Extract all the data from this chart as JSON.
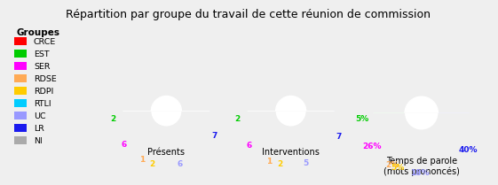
{
  "title": "Répartition par groupe du travail de cette réunion de commission",
  "groups": [
    "CRCE",
    "EST",
    "SER",
    "RDSE",
    "RDPI",
    "RTLI",
    "UC",
    "LR",
    "NI"
  ],
  "colors": [
    "#ff0000",
    "#00cc00",
    "#ff00ff",
    "#ffaa55",
    "#ffcc00",
    "#00ccff",
    "#9999ff",
    "#1a1aee",
    "#aaaaaa"
  ],
  "presents": [
    0,
    2,
    6,
    1,
    2,
    0,
    6,
    7,
    0
  ],
  "interventions": [
    0,
    2,
    6,
    1,
    2,
    0,
    5,
    7,
    0
  ],
  "temps_parole_pct": [
    0,
    5,
    26,
    2,
    5,
    0,
    18,
    40,
    0
  ],
  "chart_titles": [
    "Présents",
    "Interventions",
    "Temps de parole\n(mots prononcés)"
  ],
  "background_color": "#efefef",
  "legend_title": "Groupes"
}
